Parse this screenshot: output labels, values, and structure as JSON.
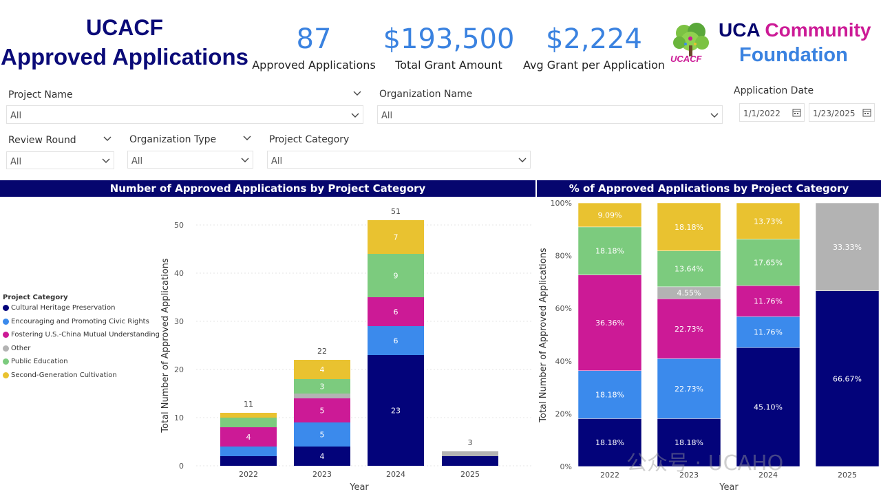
{
  "header": {
    "title_line1": "UCACF",
    "title_line2": "Approved Applications"
  },
  "kpis": [
    {
      "value": "87",
      "label": "Approved Applications"
    },
    {
      "value": "$193,500",
      "label": "Total Grant Amount"
    },
    {
      "value": "$2,224",
      "label": "Avg Grant per Application"
    }
  ],
  "logo": {
    "text_part1": "UCA",
    "text_part2": "Community",
    "text_line2": "Foundation",
    "tree_caption": "UCACF"
  },
  "filters": {
    "project_name": {
      "label": "Project Name",
      "value": "All"
    },
    "organization_name": {
      "label": "Organization Name",
      "value": "All"
    },
    "application_date": {
      "label": "Application Date",
      "start": "1/1/2022",
      "end": "1/23/2025"
    },
    "review_round": {
      "label": "Review Round",
      "value": "All"
    },
    "organization_type": {
      "label": "Organization Type",
      "value": "All"
    },
    "project_category": {
      "label": "Project Category",
      "value": "All"
    }
  },
  "colors": {
    "Cultural Heritage Preservation": "#03037a",
    "Encouraging and Promoting Civic Rights": "#3b8aec",
    "Fostering U.S.-China Mutual Understanding": "#cc1a96",
    "Other": "#b3b3b3",
    "Public Education": "#7ccb7e",
    "Second-Generation Cultivation": "#e9c230",
    "banner": "#06066e",
    "kpi": "#3a82e0"
  },
  "legend": {
    "title": "Project Category",
    "items": [
      "Cultural Heritage Preservation",
      "Encouraging and Promoting Civic Rights",
      "Fostering U.S.-China Mutual Understanding",
      "Other",
      "Public Education",
      "Second-Generation Cultivation"
    ]
  },
  "watermark": "公众号 · UCAHO",
  "chart_data": [
    {
      "type": "bar",
      "stacked": true,
      "title": "Number of Approved Applications by Project Category",
      "xlabel": "Year",
      "ylabel": "Total Number of Approved Applications",
      "categories": [
        "2022",
        "2023",
        "2024",
        "2025"
      ],
      "ylim": [
        0,
        50
      ],
      "yticks": [
        0,
        10,
        20,
        30,
        40,
        50
      ],
      "totals": [
        11,
        22,
        51,
        3
      ],
      "series": [
        {
          "name": "Cultural Heritage Preservation",
          "values": [
            2,
            4,
            23,
            2
          ],
          "labels": [
            "",
            "4",
            "23",
            ""
          ]
        },
        {
          "name": "Encouraging and Promoting Civic Rights",
          "values": [
            2,
            5,
            6,
            0
          ],
          "labels": [
            "",
            "5",
            "6",
            ""
          ]
        },
        {
          "name": "Fostering U.S.-China Mutual Understanding",
          "values": [
            4,
            5,
            6,
            0
          ],
          "labels": [
            "4",
            "5",
            "6",
            ""
          ]
        },
        {
          "name": "Other",
          "values": [
            0,
            1,
            0,
            1
          ],
          "labels": [
            "",
            "",
            "",
            ""
          ]
        },
        {
          "name": "Public Education",
          "values": [
            2,
            3,
            9,
            0
          ],
          "labels": [
            "",
            "3",
            "9",
            ""
          ]
        },
        {
          "name": "Second-Generation Cultivation",
          "values": [
            1,
            4,
            7,
            0
          ],
          "labels": [
            "",
            "4",
            "7",
            ""
          ]
        }
      ]
    },
    {
      "type": "bar",
      "stacked": true,
      "percent": true,
      "title": "% of Approved Applications by Project Category",
      "xlabel": "Year",
      "ylabel": "Total Number of Approved Applications",
      "categories": [
        "2022",
        "2023",
        "2024",
        "2025"
      ],
      "ylim": [
        0,
        100
      ],
      "yticks": [
        "0%",
        "20%",
        "40%",
        "60%",
        "80%",
        "100%"
      ],
      "series": [
        {
          "name": "Cultural Heritage Preservation",
          "values": [
            18.18,
            18.18,
            45.1,
            66.67
          ],
          "labels": [
            "18.18%",
            "18.18%",
            "45.10%",
            "66.67%"
          ]
        },
        {
          "name": "Encouraging and Promoting Civic Rights",
          "values": [
            18.18,
            22.73,
            11.76,
            0
          ],
          "labels": [
            "18.18%",
            "22.73%",
            "11.76%",
            ""
          ]
        },
        {
          "name": "Fostering U.S.-China Mutual Understanding",
          "values": [
            36.36,
            22.73,
            11.76,
            0
          ],
          "labels": [
            "36.36%",
            "22.73%",
            "11.76%",
            ""
          ]
        },
        {
          "name": "Other",
          "values": [
            0,
            4.55,
            0,
            33.33
          ],
          "labels": [
            "",
            "4.55%",
            "",
            "33.33%"
          ]
        },
        {
          "name": "Public Education",
          "values": [
            18.18,
            13.64,
            17.65,
            0
          ],
          "labels": [
            "18.18%",
            "13.64%",
            "17.65%",
            ""
          ]
        },
        {
          "name": "Second-Generation Cultivation",
          "values": [
            9.09,
            18.18,
            13.73,
            0
          ],
          "labels": [
            "9.09%",
            "18.18%",
            "13.73%",
            ""
          ]
        }
      ]
    }
  ]
}
